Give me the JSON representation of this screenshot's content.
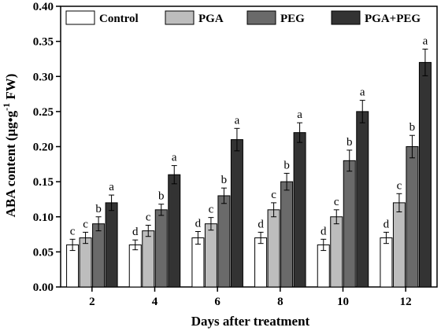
{
  "chart_data": {
    "type": "bar",
    "xlabel": "Days after treatment",
    "ylabel_main": "ABA content (μg•g",
    "ylabel_sup": "-1",
    "ylabel_tail": " FW)",
    "ylim": [
      0,
      0.4
    ],
    "yticks": [
      "0.00",
      "0.05",
      "0.10",
      "0.15",
      "0.20",
      "0.25",
      "0.30",
      "0.35",
      "0.40"
    ],
    "ytick_values": [
      0,
      0.05,
      0.1,
      0.15,
      0.2,
      0.25,
      0.3,
      0.35,
      0.4
    ],
    "categories": [
      "2",
      "4",
      "6",
      "8",
      "10",
      "12"
    ],
    "legend_position": "top",
    "series": [
      {
        "name": "Control",
        "color": "#ffffff",
        "values": [
          0.06,
          0.06,
          0.07,
          0.07,
          0.06,
          0.07
        ],
        "errors": [
          0.008,
          0.007,
          0.009,
          0.008,
          0.008,
          0.008
        ],
        "labels": [
          "c",
          "d",
          "d",
          "d",
          "d",
          "d"
        ]
      },
      {
        "name": "PGA",
        "color": "#bdbdbd",
        "values": [
          0.07,
          0.08,
          0.09,
          0.11,
          0.1,
          0.12
        ],
        "errors": [
          0.008,
          0.008,
          0.009,
          0.01,
          0.01,
          0.013
        ],
        "labels": [
          "c",
          "c",
          "c",
          "c",
          "c",
          "c"
        ]
      },
      {
        "name": "PEG",
        "color": "#6a6a6a",
        "values": [
          0.09,
          0.11,
          0.13,
          0.15,
          0.18,
          0.2
        ],
        "errors": [
          0.01,
          0.008,
          0.011,
          0.012,
          0.015,
          0.016
        ],
        "labels": [
          "b",
          "b",
          "b",
          "b",
          "b",
          "b"
        ]
      },
      {
        "name": "PGA+PEG",
        "color": "#333333",
        "values": [
          0.12,
          0.16,
          0.21,
          0.22,
          0.25,
          0.32
        ],
        "errors": [
          0.011,
          0.013,
          0.016,
          0.014,
          0.016,
          0.019
        ],
        "labels": [
          "a",
          "a",
          "a",
          "a",
          "a",
          "a"
        ]
      }
    ]
  }
}
